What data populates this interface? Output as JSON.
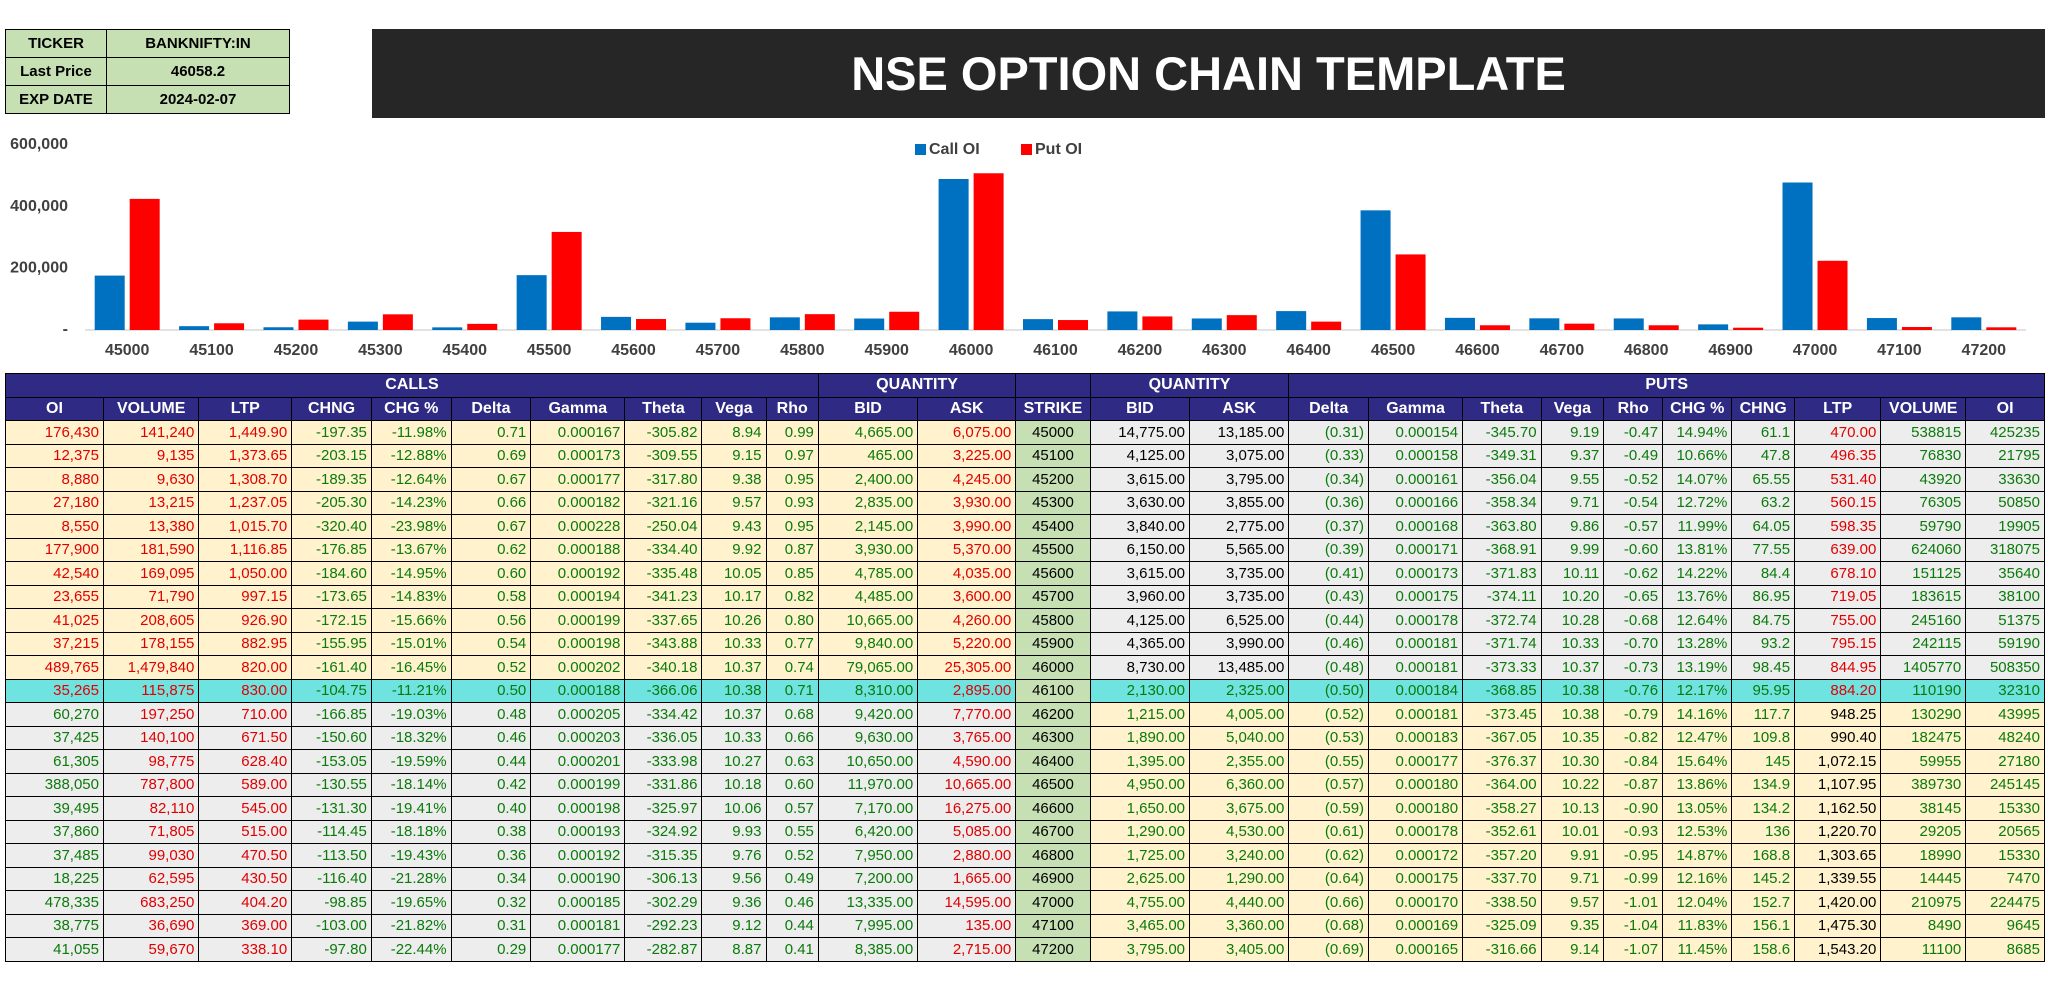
{
  "info": {
    "rows": [
      [
        "TICKER",
        "BANKNIFTY:IN"
      ],
      [
        "Last Price",
        "46058.2"
      ],
      [
        "EXP DATE",
        "2024-02-07"
      ]
    ]
  },
  "banner": {
    "title": "NSE OPTION CHAIN TEMPLATE"
  },
  "chart_data": {
    "type": "bar",
    "categories": [
      "45000",
      "45100",
      "45200",
      "45300",
      "45400",
      "45500",
      "45600",
      "45700",
      "45800",
      "45900",
      "46000",
      "46100",
      "46200",
      "46300",
      "46400",
      "46500",
      "46600",
      "46700",
      "46800",
      "46900",
      "47000",
      "47100",
      "47200"
    ],
    "series": [
      {
        "name": "Call OI",
        "color": "#0070c0",
        "values": [
          176430,
          12375,
          8880,
          27180,
          8550,
          177900,
          42540,
          23655,
          41025,
          37215,
          489765,
          35265,
          60270,
          37425,
          61305,
          388050,
          39495,
          37860,
          37485,
          18225,
          478335,
          38775,
          41055
        ]
      },
      {
        "name": "Put OI",
        "color": "#ff0000",
        "values": [
          425235,
          21795,
          33630,
          50850,
          19905,
          318075,
          35640,
          38100,
          51375,
          59190,
          508350,
          32310,
          43995,
          48240,
          27180,
          245145,
          15330,
          20565,
          15330,
          7470,
          224475,
          9645,
          8685
        ]
      }
    ],
    "ylim": [
      0,
      600000
    ],
    "yticks": [
      {
        "value": 0,
        "label": "-"
      },
      {
        "value": 200000,
        "label": "200,000"
      },
      {
        "value": 400000,
        "label": "400,000"
      },
      {
        "value": 600000,
        "label": "600,000"
      }
    ],
    "legend": "top"
  },
  "table": {
    "groups": [
      "CALLS",
      "QUANTITY",
      "QUANTITY",
      "PUTS"
    ],
    "columns": [
      "OI",
      "VOLUME",
      "LTP",
      "CHNG",
      "CHG %",
      "Delta",
      "Gamma",
      "Theta",
      "Vega",
      "Rho",
      "BID",
      "ASK",
      "STRIKE",
      "BID",
      "ASK",
      "Delta",
      "Gamma",
      "Theta",
      "Vega",
      "Rho",
      "CHG %",
      "CHNG",
      "LTP",
      "VOLUME",
      "OI"
    ],
    "rows": [
      [
        "176,430",
        "141,240",
        "1,449.90",
        "-197.35",
        "-11.98%",
        "0.71",
        "0.000167",
        "-305.82",
        "8.94",
        "0.99",
        "4,665.00",
        "6,075.00",
        "45000",
        "14,775.00",
        "13,185.00",
        "(0.31)",
        "0.000154",
        "-345.70",
        "9.19",
        "-0.47",
        "14.94%",
        "61.1",
        "470.00",
        "538815",
        "425235"
      ],
      [
        "12,375",
        "9,135",
        "1,373.65",
        "-203.15",
        "-12.88%",
        "0.69",
        "0.000173",
        "-309.55",
        "9.15",
        "0.97",
        "465.00",
        "3,225.00",
        "45100",
        "4,125.00",
        "3,075.00",
        "(0.33)",
        "0.000158",
        "-349.31",
        "9.37",
        "-0.49",
        "10.66%",
        "47.8",
        "496.35",
        "76830",
        "21795"
      ],
      [
        "8,880",
        "9,630",
        "1,308.70",
        "-189.35",
        "-12.64%",
        "0.67",
        "0.000177",
        "-317.80",
        "9.38",
        "0.95",
        "2,400.00",
        "4,245.00",
        "45200",
        "3,615.00",
        "3,795.00",
        "(0.34)",
        "0.000161",
        "-356.04",
        "9.55",
        "-0.52",
        "14.07%",
        "65.55",
        "531.40",
        "43920",
        "33630"
      ],
      [
        "27,180",
        "13,215",
        "1,237.05",
        "-205.30",
        "-14.23%",
        "0.66",
        "0.000182",
        "-321.16",
        "9.57",
        "0.93",
        "2,835.00",
        "3,930.00",
        "45300",
        "3,630.00",
        "3,855.00",
        "(0.36)",
        "0.000166",
        "-358.34",
        "9.71",
        "-0.54",
        "12.72%",
        "63.2",
        "560.15",
        "76305",
        "50850"
      ],
      [
        "8,550",
        "13,380",
        "1,015.70",
        "-320.40",
        "-23.98%",
        "0.67",
        "0.000228",
        "-250.04",
        "9.43",
        "0.95",
        "2,145.00",
        "3,990.00",
        "45400",
        "3,840.00",
        "2,775.00",
        "(0.37)",
        "0.000168",
        "-363.80",
        "9.86",
        "-0.57",
        "11.99%",
        "64.05",
        "598.35",
        "59790",
        "19905"
      ],
      [
        "177,900",
        "181,590",
        "1,116.85",
        "-176.85",
        "-13.67%",
        "0.62",
        "0.000188",
        "-334.40",
        "9.92",
        "0.87",
        "3,930.00",
        "5,370.00",
        "45500",
        "6,150.00",
        "5,565.00",
        "(0.39)",
        "0.000171",
        "-368.91",
        "9.99",
        "-0.60",
        "13.81%",
        "77.55",
        "639.00",
        "624060",
        "318075"
      ],
      [
        "42,540",
        "169,095",
        "1,050.00",
        "-184.60",
        "-14.95%",
        "0.60",
        "0.000192",
        "-335.48",
        "10.05",
        "0.85",
        "4,785.00",
        "4,035.00",
        "45600",
        "3,615.00",
        "3,735.00",
        "(0.41)",
        "0.000173",
        "-371.83",
        "10.11",
        "-0.62",
        "14.22%",
        "84.4",
        "678.10",
        "151125",
        "35640"
      ],
      [
        "23,655",
        "71,790",
        "997.15",
        "-173.65",
        "-14.83%",
        "0.58",
        "0.000194",
        "-341.23",
        "10.17",
        "0.82",
        "4,485.00",
        "3,600.00",
        "45700",
        "3,960.00",
        "3,735.00",
        "(0.43)",
        "0.000175",
        "-374.11",
        "10.20",
        "-0.65",
        "13.76%",
        "86.95",
        "719.05",
        "183615",
        "38100"
      ],
      [
        "41,025",
        "208,605",
        "926.90",
        "-172.15",
        "-15.66%",
        "0.56",
        "0.000199",
        "-337.65",
        "10.26",
        "0.80",
        "10,665.00",
        "4,260.00",
        "45800",
        "4,125.00",
        "6,525.00",
        "(0.44)",
        "0.000178",
        "-372.74",
        "10.28",
        "-0.68",
        "12.64%",
        "84.75",
        "755.00",
        "245160",
        "51375"
      ],
      [
        "37,215",
        "178,155",
        "882.95",
        "-155.95",
        "-15.01%",
        "0.54",
        "0.000198",
        "-343.88",
        "10.33",
        "0.77",
        "9,840.00",
        "5,220.00",
        "45900",
        "4,365.00",
        "3,990.00",
        "(0.46)",
        "0.000181",
        "-371.74",
        "10.33",
        "-0.70",
        "13.28%",
        "93.2",
        "795.15",
        "242115",
        "59190"
      ],
      [
        "489,765",
        "1,479,840",
        "820.00",
        "-161.40",
        "-16.45%",
        "0.52",
        "0.000202",
        "-340.18",
        "10.37",
        "0.74",
        "79,065.00",
        "25,305.00",
        "46000",
        "8,730.00",
        "13,485.00",
        "(0.48)",
        "0.000181",
        "-373.33",
        "10.37",
        "-0.73",
        "13.19%",
        "98.45",
        "844.95",
        "1405770",
        "508350"
      ],
      [
        "35,265",
        "115,875",
        "830.00",
        "-104.75",
        "-11.21%",
        "0.50",
        "0.000188",
        "-366.06",
        "10.38",
        "0.71",
        "8,310.00",
        "2,895.00",
        "46100",
        "2,130.00",
        "2,325.00",
        "(0.50)",
        "0.000184",
        "-368.85",
        "10.38",
        "-0.76",
        "12.17%",
        "95.95",
        "884.20",
        "110190",
        "32310"
      ],
      [
        "60,270",
        "197,250",
        "710.00",
        "-166.85",
        "-19.03%",
        "0.48",
        "0.000205",
        "-334.42",
        "10.37",
        "0.68",
        "9,420.00",
        "7,770.00",
        "46200",
        "1,215.00",
        "4,005.00",
        "(0.52)",
        "0.000181",
        "-373.45",
        "10.38",
        "-0.79",
        "14.16%",
        "117.7",
        "948.25",
        "130290",
        "43995"
      ],
      [
        "37,425",
        "140,100",
        "671.50",
        "-150.60",
        "-18.32%",
        "0.46",
        "0.000203",
        "-336.05",
        "10.33",
        "0.66",
        "9,630.00",
        "3,765.00",
        "46300",
        "1,890.00",
        "5,040.00",
        "(0.53)",
        "0.000183",
        "-367.05",
        "10.35",
        "-0.82",
        "12.47%",
        "109.8",
        "990.40",
        "182475",
        "48240"
      ],
      [
        "61,305",
        "98,775",
        "628.40",
        "-153.05",
        "-19.59%",
        "0.44",
        "0.000201",
        "-333.98",
        "10.27",
        "0.63",
        "10,650.00",
        "4,590.00",
        "46400",
        "1,395.00",
        "2,355.00",
        "(0.55)",
        "0.000177",
        "-376.37",
        "10.30",
        "-0.84",
        "15.64%",
        "145",
        "1,072.15",
        "59955",
        "27180"
      ],
      [
        "388,050",
        "787,800",
        "589.00",
        "-130.55",
        "-18.14%",
        "0.42",
        "0.000199",
        "-331.86",
        "10.18",
        "0.60",
        "11,970.00",
        "10,665.00",
        "46500",
        "4,950.00",
        "6,360.00",
        "(0.57)",
        "0.000180",
        "-364.00",
        "10.22",
        "-0.87",
        "13.86%",
        "134.9",
        "1,107.95",
        "389730",
        "245145"
      ],
      [
        "39,495",
        "82,110",
        "545.00",
        "-131.30",
        "-19.41%",
        "0.40",
        "0.000198",
        "-325.97",
        "10.06",
        "0.57",
        "7,170.00",
        "16,275.00",
        "46600",
        "1,650.00",
        "3,675.00",
        "(0.59)",
        "0.000180",
        "-358.27",
        "10.13",
        "-0.90",
        "13.05%",
        "134.2",
        "1,162.50",
        "38145",
        "15330"
      ],
      [
        "37,860",
        "71,805",
        "515.00",
        "-114.45",
        "-18.18%",
        "0.38",
        "0.000193",
        "-324.92",
        "9.93",
        "0.55",
        "6,420.00",
        "5,085.00",
        "46700",
        "1,290.00",
        "4,530.00",
        "(0.61)",
        "0.000178",
        "-352.61",
        "10.01",
        "-0.93",
        "12.53%",
        "136",
        "1,220.70",
        "29205",
        "20565"
      ],
      [
        "37,485",
        "99,030",
        "470.50",
        "-113.50",
        "-19.43%",
        "0.36",
        "0.000192",
        "-315.35",
        "9.76",
        "0.52",
        "7,950.00",
        "2,880.00",
        "46800",
        "1,725.00",
        "3,240.00",
        "(0.62)",
        "0.000172",
        "-357.20",
        "9.91",
        "-0.95",
        "14.87%",
        "168.8",
        "1,303.65",
        "18990",
        "15330"
      ],
      [
        "18,225",
        "62,595",
        "430.50",
        "-116.40",
        "-21.28%",
        "0.34",
        "0.000190",
        "-306.13",
        "9.56",
        "0.49",
        "7,200.00",
        "1,665.00",
        "46900",
        "2,625.00",
        "1,290.00",
        "(0.64)",
        "0.000175",
        "-337.70",
        "9.71",
        "-0.99",
        "12.16%",
        "145.2",
        "1,339.55",
        "14445",
        "7470"
      ],
      [
        "478,335",
        "683,250",
        "404.20",
        "-98.85",
        "-19.65%",
        "0.32",
        "0.000185",
        "-302.29",
        "9.36",
        "0.46",
        "13,335.00",
        "14,595.00",
        "47000",
        "4,755.00",
        "4,440.00",
        "(0.66)",
        "0.000170",
        "-338.50",
        "9.57",
        "-1.01",
        "12.04%",
        "152.7",
        "1,420.00",
        "210975",
        "224475"
      ],
      [
        "38,775",
        "36,690",
        "369.00",
        "-103.00",
        "-21.82%",
        "0.31",
        "0.000181",
        "-292.23",
        "9.12",
        "0.44",
        "7,995.00",
        "135.00",
        "47100",
        "3,465.00",
        "3,360.00",
        "(0.68)",
        "0.000169",
        "-325.09",
        "9.35",
        "-1.04",
        "11.83%",
        "156.1",
        "1,475.30",
        "8490",
        "9645"
      ],
      [
        "41,055",
        "59,670",
        "338.10",
        "-97.80",
        "-22.44%",
        "0.29",
        "0.000177",
        "-282.87",
        "8.87",
        "0.41",
        "8,385.00",
        "2,715.00",
        "47200",
        "3,795.00",
        "3,405.00",
        "(0.69)",
        "0.000165",
        "-316.66",
        "9.14",
        "-1.07",
        "11.45%",
        "158.6",
        "1,543.20",
        "11100",
        "8685"
      ]
    ]
  }
}
